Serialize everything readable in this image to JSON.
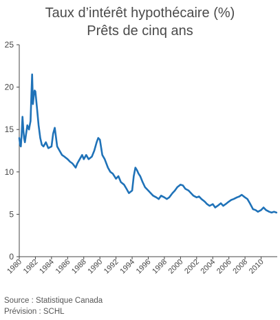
{
  "chart_data": {
    "type": "line",
    "title": "Taux d’intérêt hypothécaire (%)",
    "subtitle": "Prêts de cinq ans",
    "xlabel": "",
    "ylabel": "",
    "xlim": [
      1980,
      2012
    ],
    "ylim": [
      0,
      25
    ],
    "y_ticks": [
      0,
      5,
      10,
      15,
      20,
      25
    ],
    "x_ticks": [
      "1980",
      "1982",
      "1984",
      "1986",
      "1988",
      "1990",
      "1992",
      "1994",
      "1996",
      "1998",
      "2000",
      "2002",
      "2004",
      "2006",
      "2008",
      "2010"
    ],
    "grid": false,
    "line_color": "#1f72b8",
    "series": [
      {
        "name": "",
        "x": [
          1980.0,
          1980.1,
          1980.2,
          1980.3,
          1980.4,
          1980.5,
          1980.6,
          1980.7,
          1980.8,
          1980.9,
          1981.0,
          1981.2,
          1981.4,
          1981.5,
          1981.6,
          1981.7,
          1981.8,
          1981.9,
          1982.0,
          1982.2,
          1982.4,
          1982.6,
          1982.8,
          1983.0,
          1983.3,
          1983.6,
          1984.0,
          1984.2,
          1984.4,
          1984.7,
          1985.0,
          1985.3,
          1985.6,
          1986.0,
          1986.3,
          1986.6,
          1987.0,
          1987.2,
          1987.5,
          1987.8,
          1988.0,
          1988.3,
          1988.6,
          1989.0,
          1989.3,
          1989.6,
          1989.8,
          1990.0,
          1990.3,
          1990.6,
          1991.0,
          1991.3,
          1991.6,
          1992.0,
          1992.3,
          1992.6,
          1993.0,
          1993.3,
          1993.6,
          1994.0,
          1994.2,
          1994.4,
          1994.6,
          1994.8,
          1995.0,
          1995.3,
          1995.6,
          1996.0,
          1996.3,
          1996.6,
          1997.0,
          1997.3,
          1997.6,
          1998.0,
          1998.3,
          1998.6,
          1999.0,
          1999.3,
          1999.6,
          2000.0,
          2000.3,
          2000.6,
          2001.0,
          2001.3,
          2001.6,
          2002.0,
          2002.3,
          2002.6,
          2003.0,
          2003.3,
          2003.6,
          2004.0,
          2004.3,
          2004.6,
          2005.0,
          2005.3,
          2005.6,
          2006.0,
          2006.3,
          2006.6,
          2007.0,
          2007.3,
          2007.6,
          2008.0,
          2008.3,
          2008.6,
          2009.0,
          2009.3,
          2009.6,
          2010.0,
          2010.3,
          2010.6,
          2011.0,
          2011.3,
          2011.6,
          2011.9
        ],
        "values": [
          14.0,
          13.2,
          13.0,
          14.5,
          16.5,
          15.0,
          14.0,
          13.5,
          14.2,
          14.8,
          15.5,
          15.0,
          16.0,
          19.0,
          21.5,
          18.0,
          19.0,
          19.6,
          19.5,
          17.5,
          15.5,
          14.0,
          13.2,
          13.0,
          13.5,
          12.8,
          13.0,
          14.5,
          15.2,
          13.0,
          12.5,
          12.0,
          11.8,
          11.5,
          11.2,
          11.0,
          10.5,
          11.0,
          11.5,
          12.0,
          11.5,
          12.0,
          11.5,
          11.8,
          12.5,
          13.5,
          14.0,
          13.8,
          12.0,
          11.5,
          10.5,
          10.0,
          9.8,
          9.2,
          9.5,
          8.8,
          8.5,
          8.0,
          7.5,
          7.8,
          9.5,
          10.5,
          10.2,
          9.8,
          9.5,
          8.8,
          8.2,
          7.8,
          7.5,
          7.2,
          7.0,
          6.8,
          7.2,
          7.0,
          6.8,
          7.0,
          7.5,
          7.8,
          8.2,
          8.5,
          8.4,
          8.0,
          7.8,
          7.5,
          7.2,
          7.0,
          7.1,
          6.8,
          6.5,
          6.2,
          6.0,
          6.2,
          5.8,
          6.0,
          6.3,
          6.0,
          6.2,
          6.5,
          6.7,
          6.8,
          7.0,
          7.1,
          7.3,
          7.0,
          6.8,
          6.3,
          5.6,
          5.5,
          5.3,
          5.5,
          5.8,
          5.5,
          5.3,
          5.2,
          5.3,
          5.2
        ]
      }
    ]
  },
  "footer": {
    "source": "Source : Statistique Canada",
    "forecast": "Prévision : SCHL"
  }
}
